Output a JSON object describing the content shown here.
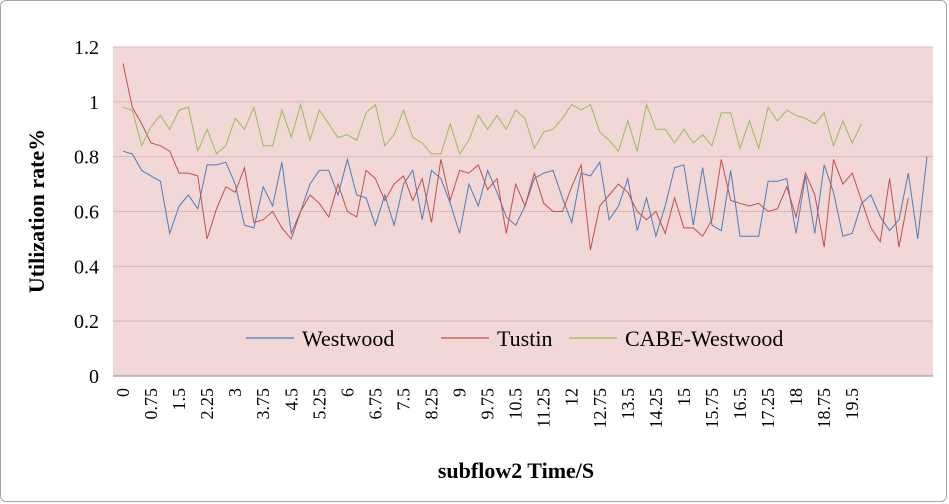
{
  "chart_data": {
    "type": "line",
    "title": "",
    "xlabel": "subflow2 Time/S",
    "ylabel": "Utilization rate%",
    "ylim": [
      0,
      1.2
    ],
    "yticks": [
      "0",
      "0.2",
      "0.4",
      "0.6",
      "0.8",
      "1",
      "1.2"
    ],
    "xticks": [
      "0",
      "0.75",
      "1.5",
      "2.25",
      "3",
      "3.75",
      "4.5",
      "5.25",
      "6",
      "6.75",
      "7.5",
      "8.25",
      "9",
      "9.75",
      "10.5",
      "11.25",
      "12",
      "12.75",
      "13.5",
      "14.25",
      "15",
      "15.75",
      "16.5",
      "17.25",
      "18",
      "18.75",
      "19.5"
    ],
    "x_step": 0.25,
    "plot_background": "#f2d7d7",
    "grid": "horizontal",
    "legend_position": "bottom-inside",
    "series": [
      {
        "name": "Westwood",
        "color": "#4a7ebb",
        "values": [
          0.82,
          0.81,
          0.75,
          0.73,
          0.71,
          0.52,
          0.62,
          0.66,
          0.61,
          0.77,
          0.77,
          0.78,
          0.7,
          0.55,
          0.54,
          0.69,
          0.62,
          0.78,
          0.52,
          0.6,
          0.7,
          0.75,
          0.75,
          0.66,
          0.79,
          0.66,
          0.65,
          0.55,
          0.66,
          0.55,
          0.7,
          0.75,
          0.57,
          0.75,
          0.72,
          0.63,
          0.52,
          0.7,
          0.62,
          0.75,
          0.67,
          0.58,
          0.55,
          0.62,
          0.72,
          0.74,
          0.75,
          0.65,
          0.56,
          0.74,
          0.73,
          0.78,
          0.57,
          0.62,
          0.72,
          0.53,
          0.65,
          0.51,
          0.62,
          0.76,
          0.77,
          0.55,
          0.76,
          0.55,
          0.53,
          0.75,
          0.51,
          0.51,
          0.51,
          0.71,
          0.71,
          0.72,
          0.52,
          0.73,
          0.52,
          0.77,
          0.67,
          0.51,
          0.52,
          0.63,
          0.66,
          0.58,
          0.53,
          0.57,
          0.74,
          0.5,
          0.8
        ]
      },
      {
        "name": "Tustin",
        "color": "#c0504d",
        "values": [
          1.14,
          0.98,
          0.92,
          0.85,
          0.84,
          0.82,
          0.74,
          0.74,
          0.73,
          0.5,
          0.61,
          0.69,
          0.67,
          0.76,
          0.56,
          0.57,
          0.6,
          0.54,
          0.5,
          0.6,
          0.66,
          0.63,
          0.58,
          0.7,
          0.6,
          0.58,
          0.75,
          0.72,
          0.64,
          0.7,
          0.73,
          0.64,
          0.72,
          0.56,
          0.79,
          0.64,
          0.75,
          0.74,
          0.77,
          0.68,
          0.72,
          0.52,
          0.7,
          0.62,
          0.74,
          0.63,
          0.6,
          0.6,
          0.69,
          0.77,
          0.46,
          0.62,
          0.66,
          0.7,
          0.67,
          0.6,
          0.57,
          0.6,
          0.52,
          0.65,
          0.54,
          0.54,
          0.51,
          0.57,
          0.79,
          0.64,
          0.63,
          0.62,
          0.63,
          0.6,
          0.61,
          0.69,
          0.58,
          0.74,
          0.66,
          0.47,
          0.79,
          0.7,
          0.74,
          0.64,
          0.54,
          0.49,
          0.72,
          0.47,
          0.65
        ]
      },
      {
        "name": "CABE-Westwood",
        "color": "#9bbb59",
        "values": [
          0.98,
          0.97,
          0.84,
          0.91,
          0.95,
          0.9,
          0.97,
          0.98,
          0.82,
          0.9,
          0.81,
          0.84,
          0.94,
          0.9,
          0.98,
          0.84,
          0.84,
          0.97,
          0.87,
          0.99,
          0.86,
          0.97,
          0.92,
          0.87,
          0.88,
          0.86,
          0.96,
          0.99,
          0.84,
          0.88,
          0.97,
          0.87,
          0.85,
          0.81,
          0.81,
          0.92,
          0.81,
          0.86,
          0.95,
          0.9,
          0.95,
          0.9,
          0.97,
          0.94,
          0.83,
          0.89,
          0.9,
          0.94,
          0.99,
          0.97,
          0.99,
          0.89,
          0.86,
          0.82,
          0.93,
          0.82,
          0.99,
          0.9,
          0.9,
          0.85,
          0.9,
          0.85,
          0.88,
          0.84,
          0.96,
          0.96,
          0.83,
          0.93,
          0.83,
          0.98,
          0.93,
          0.97,
          0.95,
          0.94,
          0.92,
          0.96,
          0.84,
          0.93,
          0.85,
          0.92
        ]
      }
    ]
  }
}
